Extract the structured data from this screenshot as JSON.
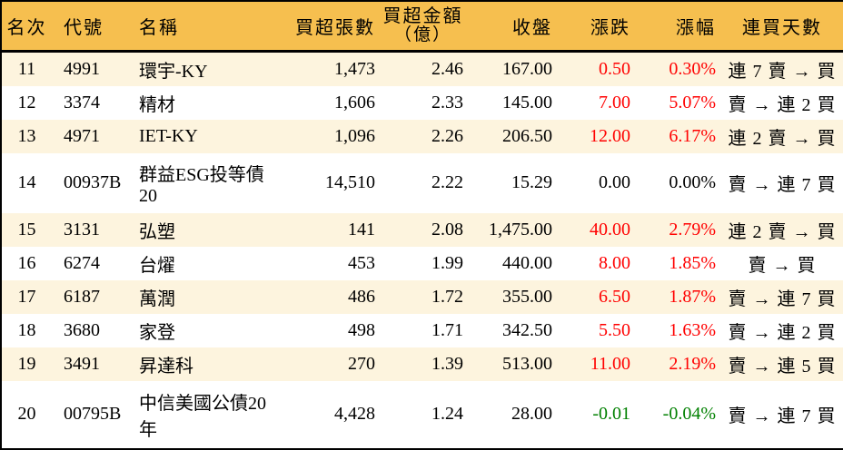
{
  "chart_data": {
    "type": "table",
    "columns": [
      {
        "label": "名次"
      },
      {
        "label": "代號"
      },
      {
        "label": "名稱"
      },
      {
        "label": "買超張數"
      },
      {
        "label": "買超金額",
        "label2": "（億）"
      },
      {
        "label": "收盤"
      },
      {
        "label": "漲跌"
      },
      {
        "label": "漲幅"
      },
      {
        "label": "連買天數"
      }
    ],
    "rows": [
      {
        "rank": "11",
        "code": "4991",
        "name": "環宇-KY",
        "volume": "1,473",
        "amount": "2.46",
        "close": "167.00",
        "change": "0.50",
        "pct": "0.30%",
        "streak": "連 7 賣 → 買",
        "trend": "up"
      },
      {
        "rank": "12",
        "code": "3374",
        "name": "精材",
        "volume": "1,606",
        "amount": "2.33",
        "close": "145.00",
        "change": "7.00",
        "pct": "5.07%",
        "streak": "賣 → 連 2 買",
        "trend": "up"
      },
      {
        "rank": "13",
        "code": "4971",
        "name": "IET-KY",
        "volume": "1,096",
        "amount": "2.26",
        "close": "206.50",
        "change": "12.00",
        "pct": "6.17%",
        "streak": "連 2 賣 → 買",
        "trend": "up"
      },
      {
        "rank": "14",
        "code": "00937B",
        "name": "群益ESG投等債20",
        "volume": "14,510",
        "amount": "2.22",
        "close": "15.29",
        "change": "0.00",
        "pct": "0.00%",
        "streak": "賣 → 連 7 買",
        "trend": "flat"
      },
      {
        "rank": "15",
        "code": "3131",
        "name": "弘塑",
        "volume": "141",
        "amount": "2.08",
        "close": "1,475.00",
        "change": "40.00",
        "pct": "2.79%",
        "streak": "連 2 賣 → 買",
        "trend": "up"
      },
      {
        "rank": "16",
        "code": "6274",
        "name": "台燿",
        "volume": "453",
        "amount": "1.99",
        "close": "440.00",
        "change": "8.00",
        "pct": "1.85%",
        "streak": "賣 → 買",
        "trend": "up"
      },
      {
        "rank": "17",
        "code": "6187",
        "name": "萬潤",
        "volume": "486",
        "amount": "1.72",
        "close": "355.00",
        "change": "6.50",
        "pct": "1.87%",
        "streak": "賣 → 連 7 買",
        "trend": "up"
      },
      {
        "rank": "18",
        "code": "3680",
        "name": "家登",
        "volume": "498",
        "amount": "1.71",
        "close": "342.50",
        "change": "5.50",
        "pct": "1.63%",
        "streak": "賣 → 連 2 買",
        "trend": "up"
      },
      {
        "rank": "19",
        "code": "3491",
        "name": "昇達科",
        "volume": "270",
        "amount": "1.39",
        "close": "513.00",
        "change": "11.00",
        "pct": "2.19%",
        "streak": "賣 → 連 5 買",
        "trend": "up"
      },
      {
        "rank": "20",
        "code": "00795B",
        "name": "中信美國公債20年",
        "volume": "4,428",
        "amount": "1.24",
        "close": "28.00",
        "change": "-0.01",
        "pct": "-0.04%",
        "streak": "賣 → 連 7 買",
        "trend": "down"
      }
    ]
  },
  "colors": {
    "header_bg": "#F6BF4F",
    "stripe_bg": "#FDF4DE",
    "row_bg": "#FFFFFF",
    "border": "#000000",
    "text": "#000000",
    "up_red": "#FF0000",
    "down_green": "#008000"
  }
}
